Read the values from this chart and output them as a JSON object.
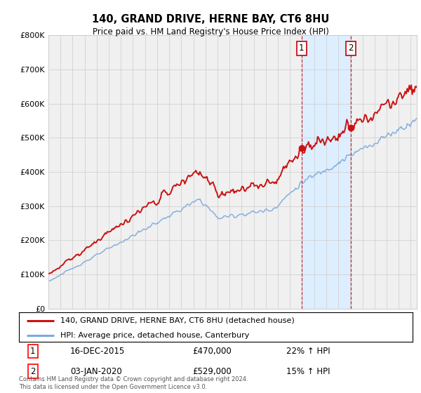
{
  "title": "140, GRAND DRIVE, HERNE BAY, CT6 8HU",
  "subtitle": "Price paid vs. HM Land Registry's House Price Index (HPI)",
  "ylim": [
    0,
    800000
  ],
  "yticks": [
    0,
    100000,
    200000,
    300000,
    400000,
    500000,
    600000,
    700000,
    800000
  ],
  "ytick_labels": [
    "£0",
    "£100K",
    "£200K",
    "£300K",
    "£400K",
    "£500K",
    "£600K",
    "£700K",
    "£800K"
  ],
  "hpi_color": "#7aaadc",
  "property_color": "#cc1111",
  "marker1_value": 470000,
  "marker1_date_str": "16-DEC-2015",
  "marker1_pct": "22% ↑ HPI",
  "marker2_value": 529000,
  "marker2_date_str": "03-JAN-2020",
  "marker2_pct": "15% ↑ HPI",
  "legend_property": "140, GRAND DRIVE, HERNE BAY, CT6 8HU (detached house)",
  "legend_hpi": "HPI: Average price, detached house, Canterbury",
  "footer": "Contains HM Land Registry data © Crown copyright and database right 2024.\nThis data is licensed under the Open Government Licence v3.0.",
  "background_color": "#ffffff",
  "plot_bg_color": "#f0f0f0",
  "span_color": "#ddeeff",
  "grid_color": "#cccccc"
}
